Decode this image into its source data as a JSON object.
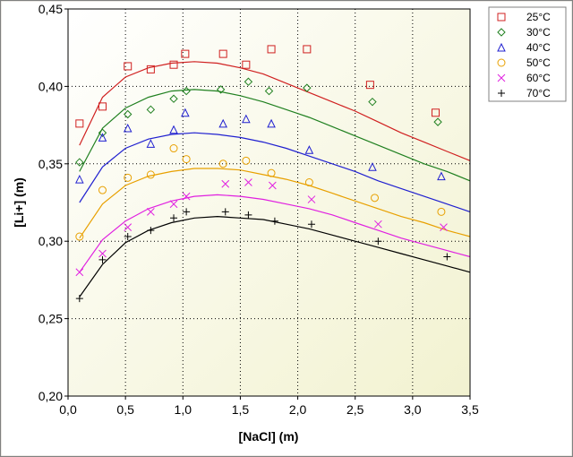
{
  "chart_data": {
    "type": "scatter",
    "xlabel": "[NaCl] (m)",
    "ylabel": "[Li+] (m)",
    "xlim": [
      0.0,
      3.5
    ],
    "ylim": [
      0.2,
      0.45
    ],
    "x_ticks": [
      "0,0",
      "0,5",
      "1,0",
      "1,5",
      "2,0",
      "2,5",
      "3,0",
      "3,5"
    ],
    "y_ticks": [
      "0,20",
      "0,25",
      "0,30",
      "0,35",
      "0,40",
      "0,45"
    ],
    "grid": true,
    "legend_position": "top-right",
    "series": [
      {
        "name": "25°C",
        "color": "#d02020",
        "marker": "square",
        "points": [
          [
            0.1,
            0.376
          ],
          [
            0.3,
            0.387
          ],
          [
            0.52,
            0.413
          ],
          [
            0.72,
            0.411
          ],
          [
            0.92,
            0.414
          ],
          [
            1.02,
            0.421
          ],
          [
            1.35,
            0.421
          ],
          [
            1.55,
            0.414
          ],
          [
            1.77,
            0.424
          ],
          [
            2.08,
            0.424
          ],
          [
            2.63,
            0.401
          ],
          [
            3.2,
            0.383
          ]
        ],
        "fit": [
          [
            0.1,
            0.362
          ],
          [
            0.3,
            0.393
          ],
          [
            0.5,
            0.406
          ],
          [
            0.7,
            0.412
          ],
          [
            0.9,
            0.415
          ],
          [
            1.1,
            0.416
          ],
          [
            1.3,
            0.415
          ],
          [
            1.5,
            0.412
          ],
          [
            1.7,
            0.408
          ],
          [
            1.9,
            0.402
          ],
          [
            2.1,
            0.396
          ],
          [
            2.3,
            0.39
          ],
          [
            2.5,
            0.384
          ],
          [
            2.7,
            0.377
          ],
          [
            2.9,
            0.37
          ],
          [
            3.1,
            0.364
          ],
          [
            3.3,
            0.358
          ],
          [
            3.5,
            0.352
          ]
        ]
      },
      {
        "name": "30°C",
        "color": "#208020",
        "marker": "diamond",
        "points": [
          [
            0.1,
            0.351
          ],
          [
            0.3,
            0.37
          ],
          [
            0.52,
            0.382
          ],
          [
            0.72,
            0.385
          ],
          [
            0.92,
            0.392
          ],
          [
            1.03,
            0.397
          ],
          [
            1.33,
            0.398
          ],
          [
            1.57,
            0.403
          ],
          [
            1.75,
            0.397
          ],
          [
            2.08,
            0.399
          ],
          [
            2.65,
            0.39
          ],
          [
            3.22,
            0.377
          ]
        ],
        "fit": [
          [
            0.1,
            0.345
          ],
          [
            0.3,
            0.373
          ],
          [
            0.5,
            0.386
          ],
          [
            0.7,
            0.393
          ],
          [
            0.9,
            0.397
          ],
          [
            1.1,
            0.398
          ],
          [
            1.3,
            0.397
          ],
          [
            1.5,
            0.394
          ],
          [
            1.7,
            0.39
          ],
          [
            1.9,
            0.385
          ],
          [
            2.1,
            0.38
          ],
          [
            2.3,
            0.374
          ],
          [
            2.5,
            0.368
          ],
          [
            2.7,
            0.362
          ],
          [
            2.9,
            0.356
          ],
          [
            3.1,
            0.35
          ],
          [
            3.3,
            0.345
          ],
          [
            3.5,
            0.339
          ]
        ]
      },
      {
        "name": "40°C",
        "color": "#2020d0",
        "marker": "triangle",
        "points": [
          [
            0.1,
            0.34
          ],
          [
            0.3,
            0.367
          ],
          [
            0.52,
            0.373
          ],
          [
            0.72,
            0.363
          ],
          [
            0.92,
            0.372
          ],
          [
            1.02,
            0.383
          ],
          [
            1.35,
            0.376
          ],
          [
            1.55,
            0.379
          ],
          [
            1.77,
            0.376
          ],
          [
            2.1,
            0.359
          ],
          [
            2.65,
            0.348
          ],
          [
            3.25,
            0.342
          ]
        ],
        "fit": [
          [
            0.1,
            0.325
          ],
          [
            0.3,
            0.348
          ],
          [
            0.5,
            0.36
          ],
          [
            0.7,
            0.366
          ],
          [
            0.9,
            0.369
          ],
          [
            1.1,
            0.37
          ],
          [
            1.3,
            0.369
          ],
          [
            1.5,
            0.367
          ],
          [
            1.7,
            0.364
          ],
          [
            1.9,
            0.36
          ],
          [
            2.1,
            0.355
          ],
          [
            2.3,
            0.35
          ],
          [
            2.5,
            0.345
          ],
          [
            2.7,
            0.339
          ],
          [
            2.9,
            0.334
          ],
          [
            3.1,
            0.329
          ],
          [
            3.3,
            0.324
          ],
          [
            3.5,
            0.319
          ]
        ]
      },
      {
        "name": "50°C",
        "color": "#e8a000",
        "marker": "circle",
        "points": [
          [
            0.1,
            0.303
          ],
          [
            0.3,
            0.333
          ],
          [
            0.52,
            0.341
          ],
          [
            0.72,
            0.343
          ],
          [
            0.92,
            0.36
          ],
          [
            1.03,
            0.353
          ],
          [
            1.35,
            0.35
          ],
          [
            1.55,
            0.352
          ],
          [
            1.77,
            0.344
          ],
          [
            2.1,
            0.338
          ],
          [
            2.67,
            0.328
          ],
          [
            3.25,
            0.319
          ]
        ],
        "fit": [
          [
            0.1,
            0.302
          ],
          [
            0.3,
            0.324
          ],
          [
            0.5,
            0.336
          ],
          [
            0.7,
            0.342
          ],
          [
            0.9,
            0.345
          ],
          [
            1.1,
            0.347
          ],
          [
            1.3,
            0.347
          ],
          [
            1.5,
            0.346
          ],
          [
            1.7,
            0.343
          ],
          [
            1.9,
            0.34
          ],
          [
            2.1,
            0.336
          ],
          [
            2.3,
            0.331
          ],
          [
            2.5,
            0.326
          ],
          [
            2.7,
            0.321
          ],
          [
            2.9,
            0.316
          ],
          [
            3.1,
            0.312
          ],
          [
            3.3,
            0.307
          ],
          [
            3.5,
            0.303
          ]
        ]
      },
      {
        "name": "60°C",
        "color": "#e020e0",
        "marker": "x",
        "points": [
          [
            0.1,
            0.28
          ],
          [
            0.3,
            0.292
          ],
          [
            0.52,
            0.309
          ],
          [
            0.72,
            0.319
          ],
          [
            0.92,
            0.324
          ],
          [
            1.03,
            0.329
          ],
          [
            1.37,
            0.337
          ],
          [
            1.57,
            0.338
          ],
          [
            1.78,
            0.336
          ],
          [
            2.12,
            0.327
          ],
          [
            2.7,
            0.311
          ],
          [
            3.27,
            0.309
          ]
        ],
        "fit": [
          [
            0.1,
            0.28
          ],
          [
            0.3,
            0.301
          ],
          [
            0.5,
            0.313
          ],
          [
            0.7,
            0.321
          ],
          [
            0.9,
            0.326
          ],
          [
            1.1,
            0.329
          ],
          [
            1.3,
            0.33
          ],
          [
            1.5,
            0.329
          ],
          [
            1.7,
            0.327
          ],
          [
            1.9,
            0.324
          ],
          [
            2.1,
            0.321
          ],
          [
            2.3,
            0.317
          ],
          [
            2.5,
            0.312
          ],
          [
            2.7,
            0.307
          ],
          [
            2.9,
            0.302
          ],
          [
            3.1,
            0.298
          ],
          [
            3.3,
            0.294
          ],
          [
            3.5,
            0.29
          ]
        ]
      },
      {
        "name": "70°C",
        "color": "#000000",
        "marker": "plus",
        "points": [
          [
            0.1,
            0.263
          ],
          [
            0.3,
            0.288
          ],
          [
            0.52,
            0.303
          ],
          [
            0.72,
            0.307
          ],
          [
            0.92,
            0.315
          ],
          [
            1.03,
            0.319
          ],
          [
            1.37,
            0.319
          ],
          [
            1.57,
            0.317
          ],
          [
            1.8,
            0.313
          ],
          [
            2.12,
            0.311
          ],
          [
            2.7,
            0.3
          ],
          [
            3.3,
            0.29
          ]
        ],
        "fit": [
          [
            0.1,
            0.264
          ],
          [
            0.3,
            0.285
          ],
          [
            0.5,
            0.299
          ],
          [
            0.7,
            0.307
          ],
          [
            0.9,
            0.312
          ],
          [
            1.1,
            0.315
          ],
          [
            1.3,
            0.316
          ],
          [
            1.5,
            0.315
          ],
          [
            1.7,
            0.314
          ],
          [
            1.9,
            0.311
          ],
          [
            2.1,
            0.308
          ],
          [
            2.3,
            0.304
          ],
          [
            2.5,
            0.3
          ],
          [
            2.7,
            0.296
          ],
          [
            2.9,
            0.292
          ],
          [
            3.1,
            0.288
          ],
          [
            3.3,
            0.284
          ],
          [
            3.5,
            0.28
          ]
        ]
      }
    ]
  }
}
